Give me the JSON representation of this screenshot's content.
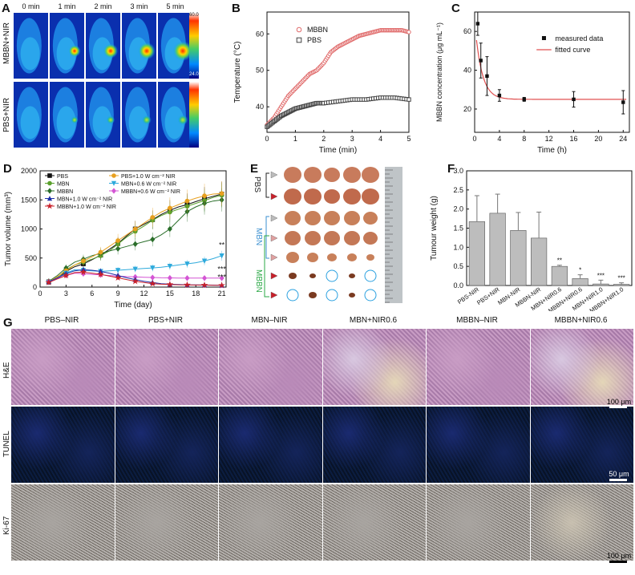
{
  "panelA": {
    "label": "A",
    "times": [
      "0 min",
      "1 min",
      "2 min",
      "3 min",
      "5 min"
    ],
    "rows": [
      "MBBN+NIR",
      "PBS+NIR"
    ],
    "scale_max": "60.0",
    "scale_min": "24.0"
  },
  "panelB": {
    "label": "B"
  },
  "panelC": {
    "label": "C"
  },
  "panelD": {
    "label": "D"
  },
  "panelE": {
    "label": "E",
    "groups": [
      "PBS",
      "MBN",
      "MBBN"
    ],
    "colors": {
      "PBS": "#222222",
      "MBN": "#3a8fd0",
      "MBBN": "#2aa845"
    }
  },
  "panelF": {
    "label": "F"
  },
  "panelG": {
    "label": "G",
    "columns": [
      "PBS–NIR",
      "PBS+NIR",
      "MBN–NIR",
      "MBN+NIR0.6",
      "MBBN–NIR",
      "MBBN+NIR0.6"
    ],
    "rows": [
      "H&E",
      "TUNEL",
      "Ki-67"
    ],
    "scale_he": "100 μm",
    "scale_tunel": "50 μm",
    "scale_ki": "100 μm"
  },
  "chart_data": [
    {
      "id": "B",
      "type": "scatter",
      "xlabel": "Time (min)",
      "ylabel": "Temperature (°C)",
      "xlim": [
        0,
        5
      ],
      "ylim": [
        33,
        66
      ],
      "xticks": [
        0,
        1,
        2,
        3,
        4,
        5
      ],
      "yticks": [
        40,
        50,
        60
      ],
      "legend": "top-left",
      "series": [
        {
          "name": "MBBN",
          "marker": "circle",
          "color": "#e06b6b",
          "x": [
            0,
            0.25,
            0.5,
            0.75,
            1,
            1.25,
            1.5,
            1.75,
            2,
            2.25,
            2.5,
            2.75,
            3,
            3.25,
            3.5,
            3.75,
            4,
            4.25,
            4.5,
            4.75,
            5
          ],
          "y": [
            35,
            37,
            40,
            43,
            45,
            47,
            49,
            50,
            52,
            55,
            56.5,
            57.5,
            58.5,
            59.5,
            60,
            60.5,
            61,
            61,
            61,
            61,
            60.5
          ]
        },
        {
          "name": "PBS",
          "marker": "square",
          "color": "#444444",
          "x": [
            0,
            0.25,
            0.5,
            0.75,
            1,
            1.25,
            1.5,
            1.75,
            2,
            2.5,
            3,
            3.5,
            4,
            4.5,
            5
          ],
          "y": [
            34.5,
            36,
            37.5,
            38.5,
            39.5,
            40,
            40.5,
            41,
            41,
            41.5,
            42,
            42,
            42.5,
            42.5,
            42
          ]
        }
      ]
    },
    {
      "id": "C",
      "type": "scatter",
      "xlabel": "Time (h)",
      "ylabel": "MBBN concentration (μg mL⁻¹)",
      "xlim": [
        0,
        25
      ],
      "ylim": [
        8,
        70
      ],
      "xticks": [
        0,
        4,
        8,
        12,
        16,
        20,
        24
      ],
      "yticks": [
        20,
        40,
        60
      ],
      "legend": "top-right",
      "series": [
        {
          "name": "measured data",
          "x": [
            0.5,
            1,
            2,
            4,
            8,
            16,
            24
          ],
          "y": [
            64,
            45,
            37,
            27,
            25,
            25,
            23.5
          ],
          "err": [
            6,
            9,
            10,
            3,
            1,
            4,
            6
          ]
        },
        {
          "name": "fitted curve",
          "fit": {
            "a": 40,
            "k": 0.9,
            "c": 25
          }
        }
      ]
    },
    {
      "id": "D",
      "type": "line",
      "xlabel": "Time (day)",
      "ylabel": "Tumor volume (mm³)",
      "xlim": [
        0,
        21.5
      ],
      "ylim": [
        0,
        2000
      ],
      "xticks": [
        0,
        3,
        6,
        9,
        12,
        15,
        18,
        21
      ],
      "yticks": [
        0,
        500,
        1000,
        1500,
        2000
      ],
      "legend": "top-left",
      "annotations": [
        "**",
        "***",
        "***"
      ],
      "x": [
        1,
        2,
        3,
        4,
        5,
        6,
        7,
        8,
        9,
        10,
        11,
        12,
        13,
        14,
        15,
        16,
        17,
        18,
        19,
        20,
        21
      ],
      "series": [
        {
          "name": "PBS",
          "color": "#111111",
          "marker": "square",
          "values": [
            90,
            150,
            270,
            350,
            400,
            470,
            550,
            650,
            750,
            880,
            1000,
            1080,
            1160,
            1250,
            1320,
            1380,
            1420,
            1470,
            1520,
            1560,
            1600
          ]
        },
        {
          "name": "MBN",
          "color": "#5aa02c",
          "marker": "circle",
          "values": [
            80,
            170,
            300,
            380,
            430,
            480,
            540,
            620,
            740,
            860,
            960,
            1050,
            1150,
            1230,
            1290,
            1340,
            1390,
            1440,
            1490,
            1540,
            1580
          ]
        },
        {
          "name": "MBBN",
          "color": "#2a6e2a",
          "marker": "diamond",
          "values": [
            100,
            200,
            330,
            430,
            480,
            540,
            580,
            620,
            660,
            700,
            740,
            780,
            820,
            900,
            1000,
            1150,
            1300,
            1380,
            1440,
            1480,
            1500
          ]
        },
        {
          "name": "PBS+1.0 W cm⁻² NIR",
          "color": "#e8a020",
          "marker": "circle",
          "values": [
            90,
            180,
            280,
            380,
            450,
            520,
            600,
            700,
            800,
            900,
            1000,
            1100,
            1200,
            1290,
            1360,
            1420,
            1480,
            1530,
            1570,
            1600,
            1610
          ]
        },
        {
          "name": "MBN+0.6 W cm⁻² NIR",
          "color": "#2eaadc",
          "marker": "triangle-down",
          "values": [
            80,
            160,
            240,
            300,
            290,
            280,
            270,
            280,
            290,
            300,
            310,
            320,
            330,
            340,
            360,
            380,
            400,
            420,
            450,
            490,
            540
          ]
        },
        {
          "name": "MBBN+0.6 W cm⁻² NIR",
          "color": "#d455d4",
          "marker": "diamond",
          "values": [
            90,
            150,
            200,
            240,
            230,
            220,
            210,
            200,
            190,
            180,
            175,
            170,
            165,
            160,
            158,
            156,
            155,
            155,
            155,
            155,
            155
          ]
        },
        {
          "name": "MBN+1.0 W cm⁻² NIR",
          "color": "#1c2fa8",
          "marker": "triangle",
          "values": [
            90,
            160,
            230,
            280,
            300,
            290,
            270,
            240,
            200,
            160,
            130,
            100,
            80,
            60,
            50,
            45,
            40,
            38,
            36,
            34,
            32
          ]
        },
        {
          "name": "MBBN+1.0 W cm⁻² NIR",
          "color": "#c8202a",
          "marker": "star",
          "values": [
            80,
            140,
            200,
            250,
            260,
            240,
            220,
            190,
            160,
            130,
            100,
            80,
            60,
            50,
            45,
            40,
            38,
            36,
            34,
            32,
            30
          ]
        }
      ]
    },
    {
      "id": "F",
      "type": "bar",
      "ylabel": "Tumour weight (g)",
      "ylim": [
        0,
        3.0
      ],
      "yticks": [
        0,
        0.5,
        1.0,
        1.5,
        2.0,
        2.5,
        3.0
      ],
      "categories": [
        "PBS-NIR",
        "PBS+NIR",
        "MBN-NIR",
        "MBBN-NIR",
        "MBN+NIR0.6",
        "MBBN+NIR0.6",
        "MBN+NIR1.0",
        "MBBN+NIR1.0"
      ],
      "values": [
        1.67,
        1.89,
        1.44,
        1.24,
        0.5,
        0.18,
        0.04,
        0.03
      ],
      "err": [
        0.68,
        0.5,
        0.47,
        0.68,
        0.03,
        0.1,
        0.1,
        0.04
      ],
      "stars": [
        "",
        "",
        "",
        "",
        "**",
        "*",
        "***",
        "***"
      ],
      "color": "#bdbdbd"
    }
  ]
}
